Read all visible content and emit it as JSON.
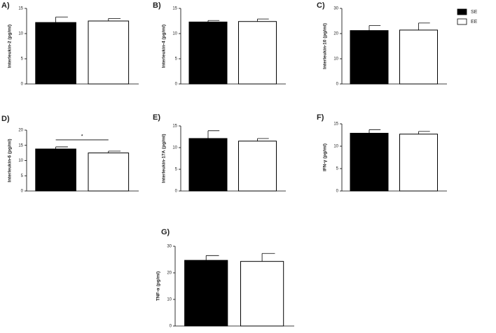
{
  "chart_data": [
    {
      "type": "bar",
      "label": "A)",
      "y_label": "Interleukin-2 (pg/ml)",
      "values": [
        12.2,
        12.5
      ],
      "errors": [
        1.1,
        0.5
      ],
      "ylim": [
        0,
        15
      ],
      "yticks": [
        0,
        5,
        10,
        15
      ]
    },
    {
      "type": "bar",
      "label": "B)",
      "y_label": "Interleukin-4 (pg/ml)",
      "values": [
        12.3,
        12.4
      ],
      "errors": [
        0.3,
        0.5
      ],
      "ylim": [
        0,
        15
      ],
      "yticks": [
        0,
        5,
        10,
        15
      ]
    },
    {
      "type": "bar",
      "label": "C)",
      "y_label": "Interleukin-10 (pg/ml)",
      "values": [
        21.2,
        21.4
      ],
      "errors": [
        2.0,
        2.8
      ],
      "ylim": [
        0,
        30
      ],
      "yticks": [
        0,
        10,
        20,
        30
      ]
    },
    {
      "type": "bar",
      "label": "D)",
      "y_label": "Interleukin-6 (pg/ml)",
      "values": [
        13.8,
        12.5
      ],
      "errors": [
        0.7,
        0.6
      ],
      "ylim": [
        0,
        20
      ],
      "yticks": [
        0,
        5,
        10,
        15,
        20
      ],
      "annotation": "*"
    },
    {
      "type": "bar",
      "label": "E)",
      "y_label": "Interleukin-17A (pg/ml)",
      "values": [
        12.1,
        11.5
      ],
      "errors": [
        1.8,
        0.6
      ],
      "ylim": [
        0,
        15
      ],
      "yticks": [
        0,
        5,
        10,
        15
      ]
    },
    {
      "type": "bar",
      "label": "F)",
      "y_label": "IFN-γ (pg/ml)",
      "values": [
        12.9,
        12.7
      ],
      "errors": [
        0.8,
        0.6
      ],
      "ylim": [
        0,
        15
      ],
      "yticks": [
        0,
        5,
        10,
        15
      ]
    },
    {
      "type": "bar",
      "label": "G)",
      "y_label": "TNF-α (pg/ml)",
      "values": [
        24.7,
        24.3
      ],
      "errors": [
        1.8,
        3.0
      ],
      "ylim": [
        0,
        30
      ],
      "yticks": [
        0,
        10,
        20,
        30
      ]
    }
  ],
  "legend": {
    "position": "upper right",
    "items": [
      {
        "name": "SE",
        "color": "#000000"
      },
      {
        "name": "EE",
        "color": "#ffffff"
      }
    ]
  }
}
